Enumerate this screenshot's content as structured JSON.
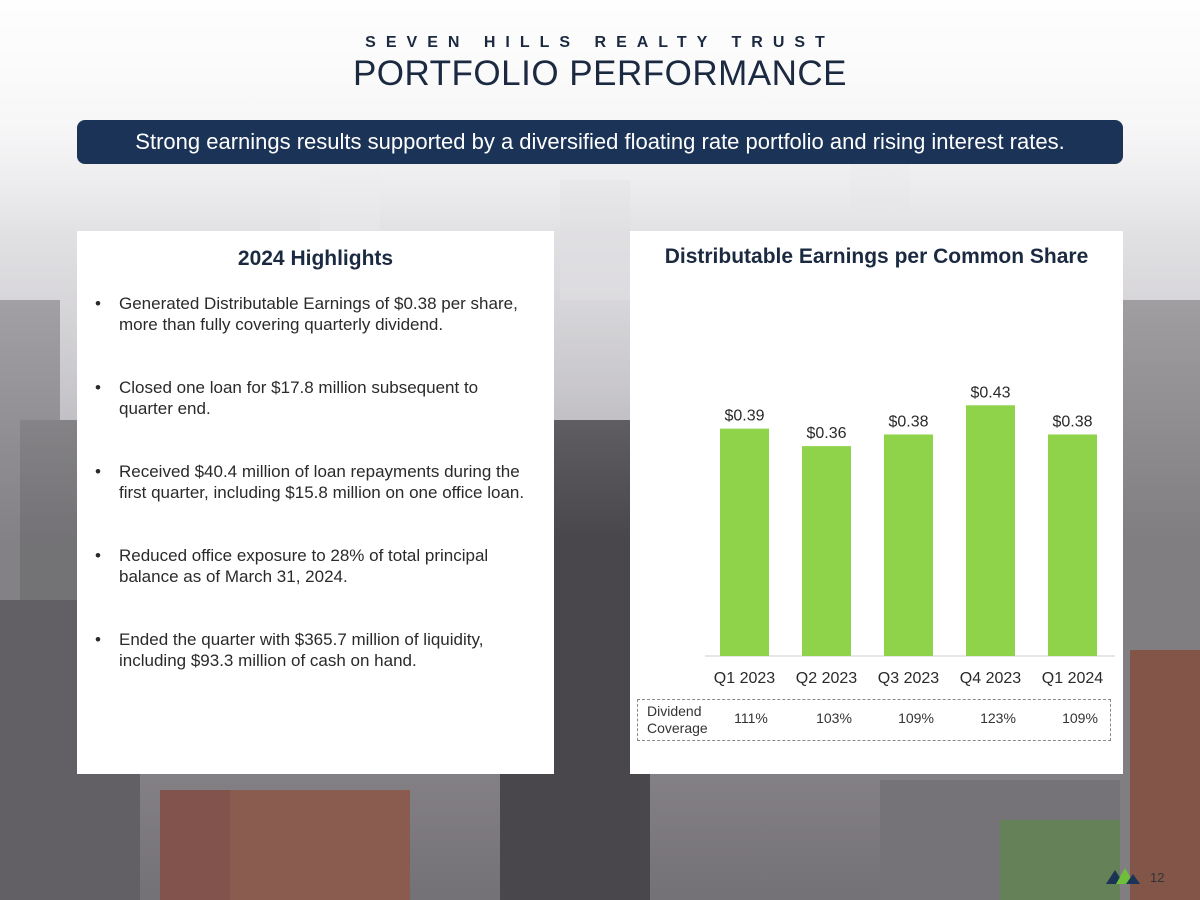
{
  "header": {
    "brand": "SEVEN HILLS REALTY TRUST",
    "title": "PORTFOLIO PERFORMANCE",
    "banner": "Strong earnings results supported by a diversified floating rate portfolio and rising interest rates."
  },
  "highlights": {
    "heading": "2024 Highlights",
    "bullet_glyph": "•",
    "items": [
      "Generated Distributable Earnings of $0.38 per share, more than fully covering quarterly dividend.",
      "Closed one loan for $17.8 million subsequent to quarter end.",
      "Received $40.4 million of loan repayments during the first quarter, including $15.8 million on one office loan.",
      "Reduced office exposure to 28% of total principal balance as of March 31, 2024.",
      "Ended the quarter with $365.7 million of liquidity, including $93.3 million of cash on hand."
    ]
  },
  "chart_data": {
    "type": "bar",
    "title": "Distributable Earnings per Common Share",
    "categories": [
      "Q1 2023",
      "Q2 2023",
      "Q3 2023",
      "Q4 2023",
      "Q1 2024"
    ],
    "values": [
      0.39,
      0.36,
      0.38,
      0.43,
      0.38
    ],
    "data_labels": [
      "$0.39",
      "$0.36",
      "$0.38",
      "$0.43",
      "$0.38"
    ],
    "xlabel": "",
    "ylabel": "",
    "ylim": [
      0,
      0.45
    ],
    "bar_color": "#8ed34a",
    "grid": false
  },
  "coverage": {
    "label": "Dividend Coverage",
    "values": [
      "111%",
      "103%",
      "109%",
      "123%",
      "109%"
    ]
  },
  "footer": {
    "page_number": "12"
  }
}
